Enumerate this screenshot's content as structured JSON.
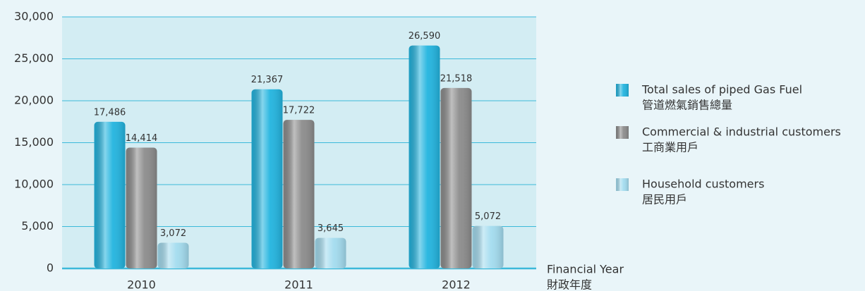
{
  "chart_data": {
    "type": "bar",
    "categories": [
      "2010",
      "2011",
      "2012"
    ],
    "series": [
      {
        "name": "Total sales of piped Gas Fuel",
        "name_zh": "管道燃氣銷售總量",
        "color": "#22b4df",
        "values": [
          17486,
          21367,
          26590
        ],
        "value_labels": [
          "17,486",
          "21,367",
          "26,590"
        ]
      },
      {
        "name": "Commercial & industrial customers",
        "name_zh": "工商業用戶",
        "color": "#8c8c8c",
        "values": [
          14414,
          17722,
          21518
        ],
        "value_labels": [
          "14,414",
          "17,722",
          "21,518"
        ]
      },
      {
        "name": "Household customers",
        "name_zh": "居民用戶",
        "color": "#a3dcef",
        "values": [
          3072,
          3645,
          5072
        ],
        "value_labels": [
          "3,072",
          "3,645",
          "5,072"
        ]
      }
    ],
    "x_label": "Financial Year",
    "x_label_zh": "財政年度",
    "ylim": [
      0,
      30000
    ],
    "yticks": [
      0,
      {
        "value": 5000,
        "label": "5,000"
      },
      {
        "value": 10000,
        "label": "10,000"
      },
      {
        "value": 15000,
        "label": "15,000"
      },
      {
        "value": 20000,
        "label": "20,000"
      },
      {
        "value": 25000,
        "label": "25,000"
      },
      {
        "value": 30000,
        "label": "30,000"
      }
    ],
    "grid": true,
    "legend": "right"
  }
}
